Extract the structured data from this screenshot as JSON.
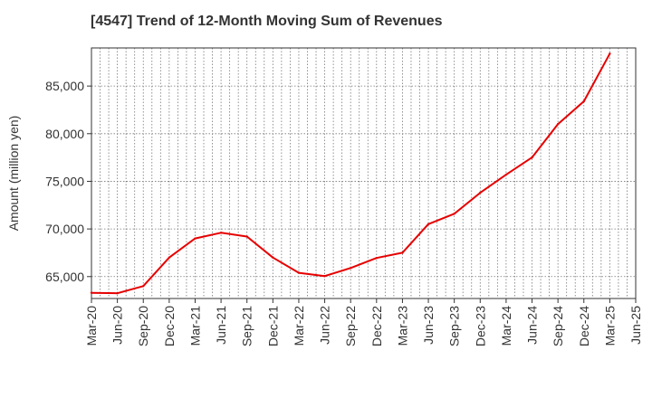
{
  "chart_data": {
    "type": "line",
    "title": "[4547]  Trend of 12-Month Moving Sum of Revenues",
    "xlabel": "",
    "ylabel": "Amount (million yen)",
    "grid": true,
    "line_color": "#e60000",
    "ylim": [
      62700,
      89000
    ],
    "yticks": [
      65000,
      70000,
      75000,
      80000,
      85000
    ],
    "ytick_labels": [
      "65,000",
      "70,000",
      "75,000",
      "80,000",
      "85,000"
    ],
    "categories": [
      "Mar-20",
      "Jun-20",
      "Sep-20",
      "Dec-20",
      "Mar-21",
      "Jun-21",
      "Sep-21",
      "Dec-21",
      "Mar-22",
      "Jun-22",
      "Sep-22",
      "Dec-22",
      "Mar-23",
      "Jun-23",
      "Sep-23",
      "Dec-23",
      "Mar-24",
      "Jun-24",
      "Sep-24",
      "Dec-24",
      "Mar-25",
      "Jun-25"
    ],
    "series": [
      {
        "values": [
          63300,
          63250,
          64000,
          67000,
          69000,
          69600,
          69200,
          67000,
          65400,
          65050,
          65900,
          66950,
          67500,
          70500,
          71600,
          73800,
          75700,
          77500,
          81000,
          83400,
          88400,
          null
        ]
      }
    ]
  }
}
